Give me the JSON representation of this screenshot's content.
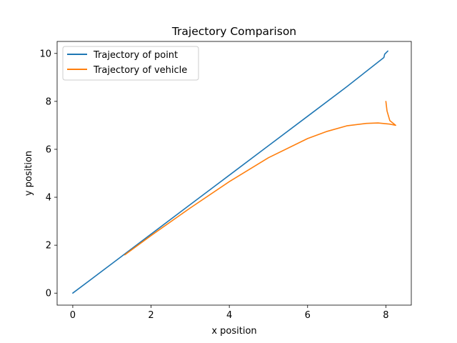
{
  "chart_data": {
    "type": "line",
    "title": "Trajectory Comparison",
    "xlabel": "x position",
    "ylabel": "y position",
    "xlim": [
      -0.4,
      8.65
    ],
    "ylim": [
      -0.5,
      10.5
    ],
    "xticks": [
      0,
      2,
      4,
      6,
      8
    ],
    "yticks": [
      0,
      2,
      4,
      6,
      8,
      10
    ],
    "grid": false,
    "legend_position": "top-left",
    "series": [
      {
        "name": "Trajectory of point",
        "color": "#1f77b4",
        "x": [
          0,
          1,
          2,
          3,
          4,
          5,
          6,
          7,
          7.95,
          7.97,
          8.05
        ],
        "y": [
          0,
          1.23,
          2.46,
          3.69,
          4.92,
          6.15,
          7.38,
          8.61,
          9.83,
          9.97,
          10.1
        ]
      },
      {
        "name": "Trajectory of vehicle",
        "color": "#ff7f0e",
        "x": [
          1.33,
          2,
          3,
          4,
          5,
          6,
          6.5,
          7,
          7.5,
          7.8,
          8.1,
          8.25,
          8.1,
          8.03,
          8.0
        ],
        "y": [
          1.6,
          2.4,
          3.55,
          4.65,
          5.65,
          6.45,
          6.75,
          6.98,
          7.08,
          7.1,
          7.05,
          7.0,
          7.2,
          7.6,
          8.0
        ]
      }
    ]
  }
}
